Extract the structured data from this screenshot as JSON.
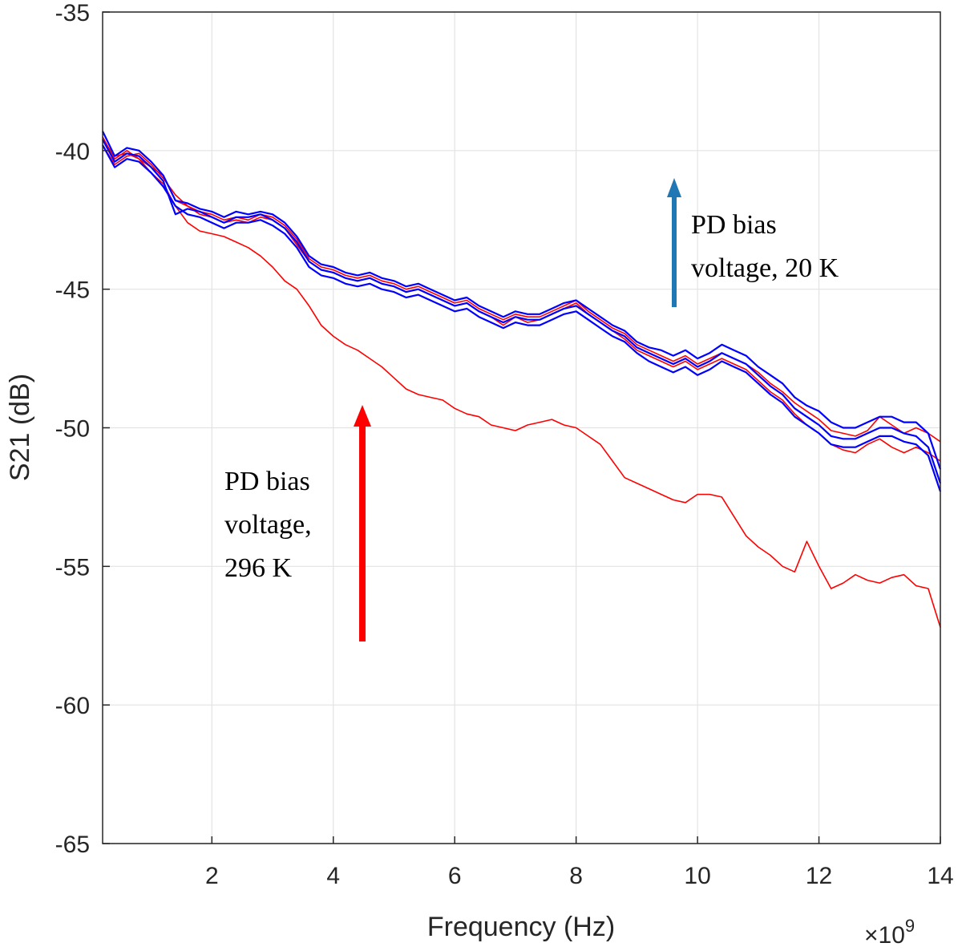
{
  "chart_data": {
    "type": "line",
    "title": "",
    "xlabel": "Frequency (Hz)",
    "ylabel": "S21 (dB)",
    "x_exponent": "9",
    "x_exponent_prefix": "×10",
    "xlim": [
      0.2,
      14
    ],
    "ylim": [
      -65,
      -35
    ],
    "xticks": [
      2,
      4,
      6,
      8,
      10,
      12,
      14
    ],
    "xtick_labels": [
      "2",
      "4",
      "6",
      "8",
      "10",
      "12",
      "14"
    ],
    "yticks": [
      -35,
      -40,
      -45,
      -50,
      -55,
      -60,
      -65
    ],
    "ytick_labels": [
      "-35",
      "-40",
      "-45",
      "-50",
      "-55",
      "-60",
      "-65"
    ],
    "grid": true,
    "colors": {
      "red": "#ff0000",
      "blue": "#0000ff",
      "arrow_blue": "#1f77b4",
      "arrow_red": "#ff0000"
    },
    "series": [
      {
        "color": "red",
        "x": [
          0.2,
          0.4,
          0.6,
          0.8,
          1.0,
          1.2,
          1.4,
          1.6,
          1.8,
          2.0,
          2.2,
          2.4,
          2.6,
          2.8,
          3.0,
          3.2,
          3.4,
          3.6,
          3.8,
          4.0,
          4.2,
          4.4,
          4.6,
          4.8,
          5.0,
          5.2,
          5.4,
          5.6,
          5.8,
          6.0,
          6.2,
          6.4,
          6.6,
          6.8,
          7.0,
          7.2,
          7.4,
          7.6,
          7.8,
          8.0,
          8.2,
          8.4,
          8.6,
          8.8,
          9.0,
          9.2,
          9.4,
          9.6,
          9.8,
          10.0,
          10.2,
          10.4,
          10.6,
          10.8,
          11.0,
          11.2,
          11.4,
          11.6,
          11.8,
          12.0,
          12.2,
          12.4,
          12.6,
          12.8,
          13.0,
          13.2,
          13.4,
          13.6,
          13.8,
          14.0
        ],
        "y": [
          -39.6,
          -40.2,
          -40.1,
          -40.3,
          -40.8,
          -41.2,
          -42.0,
          -42.6,
          -42.9,
          -43.0,
          -43.1,
          -43.3,
          -43.5,
          -43.8,
          -44.2,
          -44.7,
          -45.0,
          -45.6,
          -46.3,
          -46.7,
          -47.0,
          -47.2,
          -47.5,
          -47.8,
          -48.2,
          -48.6,
          -48.8,
          -48.9,
          -49.0,
          -49.3,
          -49.5,
          -49.6,
          -49.9,
          -50.0,
          -50.1,
          -49.9,
          -49.8,
          -49.7,
          -49.9,
          -50.0,
          -50.3,
          -50.6,
          -51.2,
          -51.8,
          -52.0,
          -52.2,
          -52.4,
          -52.6,
          -52.7,
          -52.4,
          -52.4,
          -52.5,
          -53.2,
          -53.9,
          -54.3,
          -54.6,
          -55.0,
          -55.2,
          -54.1,
          -55.0,
          -55.8,
          -55.6,
          -55.3,
          -55.5,
          -55.6,
          -55.4,
          -55.3,
          -55.7,
          -55.8,
          -57.2
        ]
      },
      {
        "color": "red",
        "x": [
          0.2,
          0.4,
          0.6,
          0.8,
          1.0,
          1.2,
          1.4,
          1.6,
          1.8,
          2.0,
          2.2,
          2.4,
          2.6,
          2.8,
          3.0,
          3.2,
          3.4,
          3.6,
          3.8,
          4.0,
          4.2,
          4.4,
          4.6,
          4.8,
          5.0,
          5.2,
          5.4,
          5.6,
          5.8,
          6.0,
          6.2,
          6.4,
          6.6,
          6.8,
          7.0,
          7.2,
          7.4,
          7.6,
          7.8,
          8.0,
          8.2,
          8.4,
          8.6,
          8.8,
          9.0,
          9.2,
          9.4,
          9.6,
          9.8,
          10.0,
          10.2,
          10.4,
          10.6,
          10.8,
          11.0,
          11.2,
          11.4,
          11.6,
          11.8,
          12.0,
          12.2,
          12.4,
          12.6,
          12.8,
          13.0,
          13.2,
          13.4,
          13.6,
          13.8,
          14.0
        ],
        "y": [
          -39.5,
          -40.3,
          -40.0,
          -40.3,
          -40.6,
          -40.9,
          -41.8,
          -42.0,
          -42.3,
          -42.4,
          -42.6,
          -42.5,
          -42.6,
          -42.4,
          -42.5,
          -42.8,
          -43.4,
          -44.0,
          -44.3,
          -44.4,
          -44.6,
          -44.7,
          -44.6,
          -44.8,
          -44.9,
          -45.1,
          -45.0,
          -45.2,
          -45.4,
          -45.6,
          -45.5,
          -45.8,
          -46.0,
          -46.3,
          -46.0,
          -46.2,
          -46.1,
          -45.9,
          -45.7,
          -45.5,
          -45.9,
          -46.2,
          -46.5,
          -46.8,
          -47.2,
          -47.4,
          -47.6,
          -47.8,
          -47.6,
          -47.9,
          -47.7,
          -47.5,
          -47.7,
          -47.9,
          -48.3,
          -48.7,
          -49.0,
          -49.5,
          -49.9,
          -50.2,
          -50.6,
          -50.8,
          -50.9,
          -50.6,
          -50.4,
          -50.7,
          -50.9,
          -50.7,
          -50.9,
          -51.2
        ]
      },
      {
        "color": "red",
        "x": [
          0.2,
          0.4,
          0.6,
          0.8,
          1.0,
          1.2,
          1.4,
          1.6,
          1.8,
          2.0,
          2.2,
          2.4,
          2.6,
          2.8,
          3.0,
          3.2,
          3.4,
          3.6,
          3.8,
          4.0,
          4.2,
          4.4,
          4.6,
          4.8,
          5.0,
          5.2,
          5.4,
          5.6,
          5.8,
          6.0,
          6.2,
          6.4,
          6.6,
          6.8,
          7.0,
          7.2,
          7.4,
          7.6,
          7.8,
          8.0,
          8.2,
          8.4,
          8.6,
          8.8,
          9.0,
          9.2,
          9.4,
          9.6,
          9.8,
          10.0,
          10.2,
          10.4,
          10.6,
          10.8,
          11.0,
          11.2,
          11.4,
          11.6,
          11.8,
          12.0,
          12.2,
          12.4,
          12.6,
          12.8,
          13.0,
          13.2,
          13.4,
          13.6,
          13.8,
          14.0
        ],
        "y": [
          -39.8,
          -40.5,
          -40.2,
          -40.1,
          -40.5,
          -41.0,
          -41.6,
          -42.0,
          -42.2,
          -42.3,
          -42.5,
          -42.4,
          -42.5,
          -42.3,
          -42.4,
          -42.7,
          -43.2,
          -43.9,
          -44.2,
          -44.3,
          -44.5,
          -44.6,
          -44.5,
          -44.7,
          -44.8,
          -45.0,
          -44.9,
          -45.1,
          -45.3,
          -45.5,
          -45.4,
          -45.7,
          -45.9,
          -46.1,
          -45.9,
          -46.0,
          -46.0,
          -45.8,
          -45.6,
          -45.4,
          -45.8,
          -46.1,
          -46.4,
          -46.6,
          -47.0,
          -47.2,
          -47.4,
          -47.6,
          -47.4,
          -47.7,
          -47.5,
          -47.3,
          -47.5,
          -47.7,
          -48.0,
          -48.4,
          -48.7,
          -49.1,
          -49.4,
          -49.7,
          -50.1,
          -50.2,
          -50.3,
          -50.1,
          -49.6,
          -49.9,
          -50.2,
          -50.0,
          -50.2,
          -50.5
        ]
      },
      {
        "color": "blue",
        "x": [
          0.2,
          0.4,
          0.6,
          0.8,
          1.0,
          1.2,
          1.4,
          1.6,
          1.8,
          2.0,
          2.2,
          2.4,
          2.6,
          2.8,
          3.0,
          3.2,
          3.4,
          3.6,
          3.8,
          4.0,
          4.2,
          4.4,
          4.6,
          4.8,
          5.0,
          5.2,
          5.4,
          5.6,
          5.8,
          6.0,
          6.2,
          6.4,
          6.6,
          6.8,
          7.0,
          7.2,
          7.4,
          7.6,
          7.8,
          8.0,
          8.2,
          8.4,
          8.6,
          8.8,
          9.0,
          9.2,
          9.4,
          9.6,
          9.8,
          10.0,
          10.2,
          10.4,
          10.6,
          10.8,
          11.0,
          11.2,
          11.4,
          11.6,
          11.8,
          12.0,
          12.2,
          12.4,
          12.6,
          12.8,
          13.0,
          13.2,
          13.4,
          13.6,
          13.8,
          14.0
        ],
        "y": [
          -39.3,
          -40.2,
          -39.9,
          -40.0,
          -40.4,
          -40.9,
          -41.8,
          -41.9,
          -42.1,
          -42.2,
          -42.4,
          -42.2,
          -42.3,
          -42.2,
          -42.3,
          -42.6,
          -43.1,
          -43.8,
          -44.1,
          -44.2,
          -44.4,
          -44.5,
          -44.4,
          -44.6,
          -44.7,
          -44.9,
          -44.8,
          -45.0,
          -45.2,
          -45.4,
          -45.3,
          -45.6,
          -45.8,
          -46.0,
          -45.8,
          -45.9,
          -45.9,
          -45.7,
          -45.5,
          -45.4,
          -45.7,
          -46.0,
          -46.3,
          -46.5,
          -46.9,
          -47.1,
          -47.2,
          -47.4,
          -47.2,
          -47.5,
          -47.3,
          -47.0,
          -47.2,
          -47.4,
          -47.8,
          -48.1,
          -48.4,
          -48.9,
          -49.2,
          -49.4,
          -49.8,
          -50.0,
          -50.0,
          -49.8,
          -49.6,
          -49.6,
          -49.8,
          -49.8,
          -50.2,
          -51.5
        ]
      },
      {
        "color": "blue",
        "x": [
          0.2,
          0.4,
          0.6,
          0.8,
          1.0,
          1.2,
          1.4,
          1.6,
          1.8,
          2.0,
          2.2,
          2.4,
          2.6,
          2.8,
          3.0,
          3.2,
          3.4,
          3.6,
          3.8,
          4.0,
          4.2,
          4.4,
          4.6,
          4.8,
          5.0,
          5.2,
          5.4,
          5.6,
          5.8,
          6.0,
          6.2,
          6.4,
          6.6,
          6.8,
          7.0,
          7.2,
          7.4,
          7.6,
          7.8,
          8.0,
          8.2,
          8.4,
          8.6,
          8.8,
          9.0,
          9.2,
          9.4,
          9.6,
          9.8,
          10.0,
          10.2,
          10.4,
          10.6,
          10.8,
          11.0,
          11.2,
          11.4,
          11.6,
          11.8,
          12.0,
          12.2,
          12.4,
          12.6,
          12.8,
          13.0,
          13.2,
          13.4,
          13.6,
          13.8,
          14.0
        ],
        "y": [
          -39.6,
          -40.4,
          -40.1,
          -40.2,
          -40.6,
          -41.1,
          -42.3,
          -42.1,
          -42.2,
          -42.4,
          -42.6,
          -42.4,
          -42.4,
          -42.3,
          -42.5,
          -42.8,
          -43.3,
          -44.0,
          -44.3,
          -44.4,
          -44.6,
          -44.7,
          -44.6,
          -44.8,
          -44.9,
          -45.1,
          -45.0,
          -45.2,
          -45.4,
          -45.6,
          -45.5,
          -45.8,
          -46.0,
          -46.2,
          -46.0,
          -46.1,
          -46.1,
          -45.9,
          -45.7,
          -45.6,
          -45.9,
          -46.2,
          -46.5,
          -46.7,
          -47.1,
          -47.3,
          -47.5,
          -47.7,
          -47.5,
          -47.8,
          -47.6,
          -47.3,
          -47.5,
          -47.7,
          -48.1,
          -48.5,
          -48.8,
          -49.3,
          -49.6,
          -49.9,
          -50.3,
          -50.4,
          -50.4,
          -50.2,
          -50.0,
          -50.0,
          -50.2,
          -50.3,
          -50.7,
          -52.0
        ]
      },
      {
        "color": "blue",
        "x": [
          0.2,
          0.4,
          0.6,
          0.8,
          1.0,
          1.2,
          1.4,
          1.6,
          1.8,
          2.0,
          2.2,
          2.4,
          2.6,
          2.8,
          3.0,
          3.2,
          3.4,
          3.6,
          3.8,
          4.0,
          4.2,
          4.4,
          4.6,
          4.8,
          5.0,
          5.2,
          5.4,
          5.6,
          5.8,
          6.0,
          6.2,
          6.4,
          6.6,
          6.8,
          7.0,
          7.2,
          7.4,
          7.6,
          7.8,
          8.0,
          8.2,
          8.4,
          8.6,
          8.8,
          9.0,
          9.2,
          9.4,
          9.6,
          9.8,
          10.0,
          10.2,
          10.4,
          10.6,
          10.8,
          11.0,
          11.2,
          11.4,
          11.6,
          11.8,
          12.0,
          12.2,
          12.4,
          12.6,
          12.8,
          13.0,
          13.2,
          13.4,
          13.6,
          13.8,
          14.0
        ],
        "y": [
          -39.8,
          -40.6,
          -40.3,
          -40.4,
          -40.8,
          -41.3,
          -42.0,
          -42.3,
          -42.4,
          -42.6,
          -42.8,
          -42.6,
          -42.6,
          -42.5,
          -42.7,
          -43.0,
          -43.5,
          -44.2,
          -44.5,
          -44.6,
          -44.8,
          -44.9,
          -44.8,
          -45.0,
          -45.1,
          -45.3,
          -45.2,
          -45.4,
          -45.6,
          -45.8,
          -45.7,
          -46.0,
          -46.2,
          -46.4,
          -46.2,
          -46.3,
          -46.3,
          -46.1,
          -45.9,
          -45.8,
          -46.1,
          -46.4,
          -46.7,
          -46.9,
          -47.3,
          -47.6,
          -47.8,
          -48.0,
          -47.8,
          -48.1,
          -47.9,
          -47.6,
          -47.8,
          -48.0,
          -48.4,
          -48.8,
          -49.1,
          -49.6,
          -49.9,
          -50.2,
          -50.6,
          -50.7,
          -50.7,
          -50.5,
          -50.3,
          -50.3,
          -50.5,
          -50.6,
          -51.0,
          -52.3
        ]
      }
    ],
    "annotations": [
      {
        "lines": [
          "PD bias",
          "voltage, 20 K"
        ],
        "color": "#000000"
      },
      {
        "lines": [
          "PD bias",
          "voltage,",
          "296 K"
        ],
        "color": "#000000"
      }
    ]
  }
}
